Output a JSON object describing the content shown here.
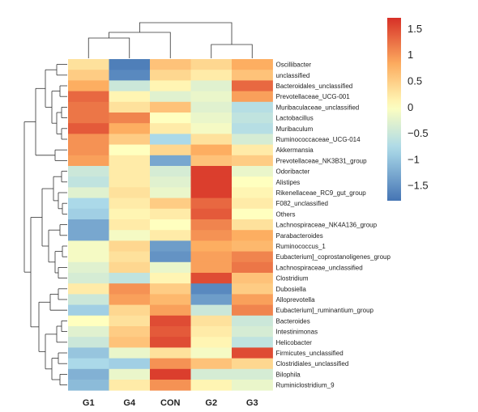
{
  "chart_data": {
    "type": "heatmap",
    "columns": [
      "G1",
      "G4",
      "CON",
      "G2",
      "G3"
    ],
    "rows": [
      "Oscillibacter",
      "unclassified",
      "Bacteroidales_unclassified",
      "Prevotellaceae_UCG-001",
      "Muribaculaceae_unclassified",
      "Lactobacillus",
      "Muribaculum",
      "Ruminococcaceae_UCG-014",
      "Akkermansia",
      "Prevotellaceae_NK3B31_group",
      "Odoribacter",
      "Alistipes",
      "Rikenellaceae_RC9_gut_group",
      "F082_unclassified",
      "Others",
      "Lachnospiraceae_NK4A136_group",
      "Parabacteroides",
      "Ruminococcus_1",
      "Eubacterium]_coprostanoligenes_group",
      "Lachnospiraceae_unclassified",
      "Clostridium",
      "Dubosiella",
      "Alloprevotella",
      "Eubacterium]_ruminantium_group",
      "Bacteroides",
      "Intestinimonas",
      "Helicobacter",
      "Firmicutes_unclassified",
      "Clostridiales_unclassified",
      "Bilophila",
      "Ruminiclostridium_9"
    ],
    "values": [
      [
        0.3,
        -1.7,
        0.6,
        0.4,
        0.8
      ],
      [
        0.5,
        -1.6,
        0.4,
        0.2,
        0.6
      ],
      [
        0.8,
        -0.5,
        0.1,
        -0.3,
        1.3
      ],
      [
        1.3,
        0.1,
        -0.3,
        -0.2,
        0.9
      ],
      [
        1.2,
        0.3,
        0.6,
        -0.3,
        -0.7
      ],
      [
        1.2,
        1.1,
        0.0,
        -0.2,
        -0.6
      ],
      [
        1.4,
        0.8,
        0.2,
        -0.1,
        -0.7
      ],
      [
        1.0,
        0.5,
        -0.8,
        0.3,
        -0.4
      ],
      [
        1.0,
        0.0,
        0.4,
        0.8,
        0.2
      ],
      [
        0.9,
        0.2,
        -1.3,
        0.6,
        0.5
      ],
      [
        -0.5,
        0.2,
        -0.4,
        1.6,
        -0.2
      ],
      [
        -0.6,
        0.2,
        -0.3,
        1.6,
        0.0
      ],
      [
        -0.3,
        0.3,
        -0.2,
        1.6,
        0.1
      ],
      [
        -0.8,
        0.2,
        0.5,
        1.3,
        0.2
      ],
      [
        -0.9,
        0.1,
        0.2,
        1.4,
        0.0
      ],
      [
        -1.3,
        0.2,
        0.0,
        1.1,
        0.3
      ],
      [
        -1.3,
        -0.1,
        0.2,
        1.0,
        0.8
      ],
      [
        -0.1,
        0.4,
        -1.4,
        0.8,
        0.7
      ],
      [
        -0.1,
        0.3,
        -1.5,
        0.9,
        1.1
      ],
      [
        -0.3,
        0.4,
        -0.2,
        0.9,
        1.2
      ],
      [
        -0.4,
        -0.6,
        0.1,
        1.5,
        0.6
      ],
      [
        0.2,
        1.0,
        0.5,
        -1.6,
        0.5
      ],
      [
        -0.5,
        0.9,
        0.7,
        -1.4,
        0.9
      ],
      [
        -0.9,
        0.4,
        0.9,
        -0.5,
        1.1
      ],
      [
        0.0,
        0.3,
        1.5,
        0.3,
        -0.5
      ],
      [
        -0.3,
        0.5,
        1.4,
        0.2,
        -0.4
      ],
      [
        -0.5,
        0.6,
        1.5,
        0.1,
        -0.6
      ],
      [
        -1.0,
        -0.2,
        0.3,
        -0.1,
        1.5
      ],
      [
        -0.8,
        -0.9,
        1.0,
        0.6,
        0.4
      ],
      [
        -1.2,
        -0.2,
        1.6,
        -0.4,
        -0.4
      ],
      [
        -1.1,
        0.2,
        1.0,
        0.1,
        -0.2
      ]
    ],
    "legend": {
      "ticks": [
        "1.5",
        "1",
        "0.5",
        "0",
        "−0.5",
        "−1",
        "−1.5"
      ],
      "tick_values": [
        1.5,
        1.0,
        0.5,
        0.0,
        -0.5,
        -1.0,
        -1.5
      ],
      "range": [
        -1.8,
        1.7
      ],
      "placement": "top-right"
    },
    "colors": {
      "high": "#d73027",
      "mid_high": "#fdae61",
      "mid": "#ffffbf",
      "mid_low": "#abd9e9",
      "low": "#4575b4"
    },
    "column_dendrogram": true,
    "row_dendrogram": true,
    "title": "",
    "xlabel": "",
    "ylabel": ""
  }
}
